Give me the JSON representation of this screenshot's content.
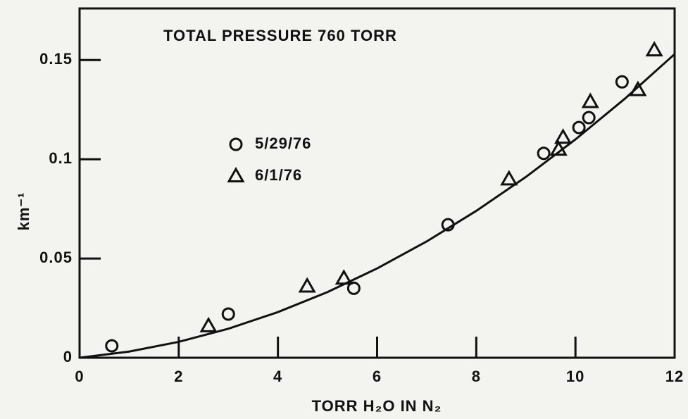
{
  "chart_data": {
    "type": "scatter",
    "annotation": "TOTAL PRESSURE 760 TORR",
    "xlabel": "TORR H₂O IN N₂",
    "ylabel": "km⁻¹",
    "xlim": [
      0,
      12
    ],
    "ylim": [
      0,
      0.176
    ],
    "xticks": [
      0,
      2,
      4,
      6,
      8,
      10,
      12
    ],
    "yticks": [
      0,
      0.05,
      0.1,
      0.15
    ],
    "series": [
      {
        "name": "5/29/76",
        "marker": "circle",
        "color": "#111111",
        "x": [
          0.65,
          3.0,
          5.53,
          7.43,
          9.36,
          10.07,
          10.27,
          10.94
        ],
        "values": [
          0.006,
          0.022,
          0.035,
          0.067,
          0.103,
          0.116,
          0.121,
          0.139
        ]
      },
      {
        "name": "6/1/76",
        "marker": "triangle",
        "color": "#111111",
        "x": [
          2.6,
          4.59,
          5.33,
          8.66,
          9.66,
          9.75,
          10.3,
          11.26,
          11.59
        ],
        "values": [
          0.016,
          0.036,
          0.04,
          0.09,
          0.105,
          0.111,
          0.129,
          0.135,
          0.155
        ]
      },
      {
        "marker": "line",
        "color": "#111111",
        "x": [
          0,
          1,
          2,
          3,
          4,
          5,
          6,
          7,
          8,
          9,
          10,
          11,
          12
        ],
        "values": [
          0,
          0.0031,
          0.008,
          0.0146,
          0.023,
          0.0331,
          0.045,
          0.0586,
          0.074,
          0.0911,
          0.11,
          0.1306,
          0.153
        ]
      }
    ]
  }
}
